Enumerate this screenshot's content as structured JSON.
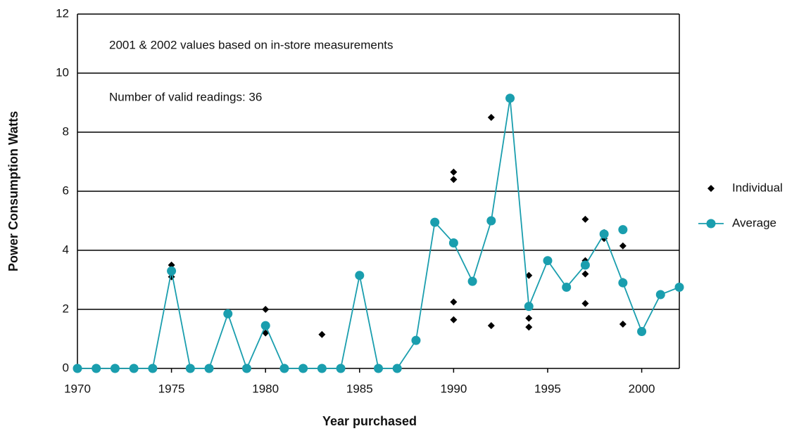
{
  "chart_data": {
    "type": "scatter",
    "x_label": "Year purchased",
    "y_label": "Power Consumption Watts",
    "annotations": [
      "2001 & 2002 values based on in-store measurements",
      "Number of valid readings: 36"
    ],
    "xlim": [
      1970,
      2002
    ],
    "ylim": [
      0,
      12
    ],
    "xticks": [
      1970,
      1975,
      1980,
      1985,
      1990,
      1995,
      2000
    ],
    "yticks": [
      0,
      2,
      4,
      6,
      8,
      10,
      12
    ],
    "grid": true,
    "legend": "right",
    "series": [
      {
        "name": "Individual",
        "color": "#000000",
        "mode": "markers",
        "x": [
          1975,
          1975,
          1980,
          1980,
          1983,
          1990,
          1990,
          1990,
          1990,
          1992,
          1992,
          1994,
          1994,
          1994,
          1997,
          1997,
          1997,
          1997,
          1998,
          1998,
          1999,
          1999,
          1999
        ],
        "values": [
          3.5,
          3.1,
          2.0,
          1.2,
          1.15,
          6.65,
          6.4,
          2.25,
          1.65,
          8.5,
          1.45,
          3.15,
          1.7,
          1.4,
          5.05,
          3.65,
          3.2,
          2.2,
          4.6,
          4.4,
          4.15,
          2.95,
          1.5
        ]
      },
      {
        "name": "Average",
        "color": "#1a9eae",
        "mode": "lines+markers",
        "x": [
          1970,
          1971,
          1972,
          1973,
          1974,
          1975,
          1976,
          1977,
          1978,
          1979,
          1980,
          1981,
          1982,
          1983,
          1984,
          1985,
          1986,
          1987,
          1988,
          1989,
          1990,
          1991,
          1992,
          1993,
          1994,
          1995,
          1996,
          1997,
          1998,
          1999,
          2000,
          2001,
          2002,
          null,
          1999
        ],
        "values": [
          0,
          0,
          0,
          0,
          0,
          3.3,
          0,
          0,
          1.85,
          0,
          1.45,
          0,
          0,
          0,
          0,
          3.15,
          0,
          0,
          0.95,
          4.95,
          4.25,
          2.95,
          5.0,
          9.15,
          2.1,
          3.65,
          2.75,
          3.5,
          4.55,
          2.9,
          1.25,
          2.5,
          2.75,
          null,
          4.7
        ]
      }
    ]
  }
}
